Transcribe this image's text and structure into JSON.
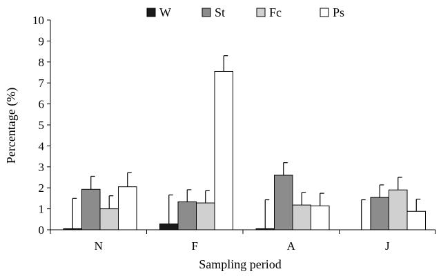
{
  "chart_data": {
    "type": "bar",
    "categories": [
      "N",
      "F",
      "A",
      "J"
    ],
    "series": [
      {
        "name": "W",
        "values": [
          0.05,
          0.28,
          0.05,
          0.0
        ],
        "errors": [
          1.45,
          1.38,
          1.38,
          1.43
        ],
        "fill": "#1a1a1a"
      },
      {
        "name": "St",
        "values": [
          1.93,
          1.33,
          2.6,
          1.54
        ],
        "errors": [
          0.62,
          0.58,
          0.6,
          0.6
        ],
        "fill": "#8c8c8c"
      },
      {
        "name": "Fc",
        "values": [
          1.0,
          1.28,
          1.18,
          1.9
        ],
        "errors": [
          0.62,
          0.58,
          0.6,
          0.6
        ],
        "fill": "#d0d0d0"
      },
      {
        "name": "Ps",
        "values": [
          2.05,
          7.55,
          1.14,
          0.88
        ],
        "errors": [
          0.67,
          0.75,
          0.6,
          0.58
        ],
        "fill": "#ffffff"
      }
    ],
    "xlabel": "Sampling period",
    "ylabel": "Percentage (%)",
    "ylim": [
      0,
      10
    ],
    "yticks": [
      "0",
      "1",
      "2",
      "3",
      "4",
      "5",
      "6",
      "7",
      "8",
      "9",
      "10"
    ],
    "legend_position": "top",
    "grid": false
  }
}
